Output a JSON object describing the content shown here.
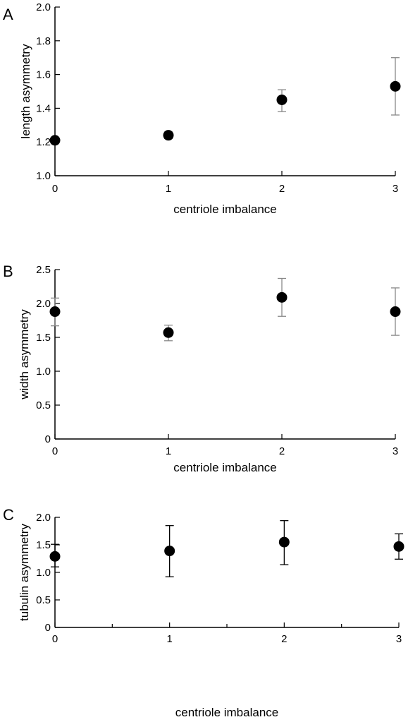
{
  "chart_data": [
    {
      "type": "scatter",
      "panel_letter": "A",
      "xlabel": "centriole imbalance",
      "ylabel": "length asymmetry",
      "xlim": [
        0,
        3
      ],
      "ylim": [
        1.0,
        2.0
      ],
      "xticks": [
        0,
        1,
        2,
        3
      ],
      "xtick_labels": [
        "0",
        "1",
        "2",
        "3"
      ],
      "yticks": [
        1.0,
        1.2,
        1.4,
        1.6,
        1.8,
        2.0
      ],
      "ytick_labels": [
        "1.0",
        "1.2",
        "1.4",
        "1.6",
        "1.8",
        "2.0"
      ],
      "xminor": [],
      "errorbar_color": "#888888",
      "grid": false,
      "points": [
        {
          "x": 0,
          "y": 1.21,
          "err_low": 1.21,
          "err_high": 1.21
        },
        {
          "x": 1,
          "y": 1.24,
          "err_low": 1.22,
          "err_high": 1.26
        },
        {
          "x": 2,
          "y": 1.45,
          "err_low": 1.38,
          "err_high": 1.51
        },
        {
          "x": 3,
          "y": 1.53,
          "err_low": 1.36,
          "err_high": 1.7
        }
      ]
    },
    {
      "type": "scatter",
      "panel_letter": "B",
      "xlabel": "centriole imbalance",
      "ylabel": "width asymmetry",
      "xlim": [
        0,
        3
      ],
      "ylim": [
        0,
        2.5
      ],
      "xticks": [
        0,
        1,
        2,
        3
      ],
      "xtick_labels": [
        "0",
        "1",
        "2",
        "3"
      ],
      "yticks": [
        0,
        0.5,
        1.0,
        1.5,
        2.0,
        2.5
      ],
      "ytick_labels": [
        "0",
        "0.5",
        "1.0",
        "1.5",
        "2.0",
        "2.5"
      ],
      "xminor": [],
      "errorbar_color": "#888888",
      "grid": false,
      "points": [
        {
          "x": 0,
          "y": 1.88,
          "err_low": 1.67,
          "err_high": 2.08
        },
        {
          "x": 1,
          "y": 1.57,
          "err_low": 1.45,
          "err_high": 1.68
        },
        {
          "x": 2,
          "y": 2.09,
          "err_low": 1.81,
          "err_high": 2.37
        },
        {
          "x": 3,
          "y": 1.88,
          "err_low": 1.53,
          "err_high": 2.23
        }
      ]
    },
    {
      "type": "scatter",
      "panel_letter": "C",
      "xlabel": "centriole imbalance",
      "ylabel": "tubulin asymmetry",
      "xlim": [
        0,
        3
      ],
      "ylim": [
        0,
        2.0
      ],
      "xticks": [
        0,
        1,
        2,
        3
      ],
      "xtick_labels": [
        "0",
        "1",
        "2",
        "3"
      ],
      "yticks": [
        0,
        0.5,
        1.0,
        1.5,
        2.0
      ],
      "ytick_labels": [
        "0",
        "0.5",
        "1.0",
        "1.5",
        "2.0"
      ],
      "xminor": [
        0.5,
        1.5,
        2.5
      ],
      "errorbar_color": "#000000",
      "grid": false,
      "points": [
        {
          "x": 0,
          "y": 1.29,
          "err_low": 1.1,
          "err_high": 1.51
        },
        {
          "x": 1,
          "y": 1.39,
          "err_low": 0.92,
          "err_high": 1.85
        },
        {
          "x": 2,
          "y": 1.55,
          "err_low": 1.14,
          "err_high": 1.94
        },
        {
          "x": 3,
          "y": 1.47,
          "err_low": 1.24,
          "err_high": 1.7
        }
      ]
    }
  ]
}
